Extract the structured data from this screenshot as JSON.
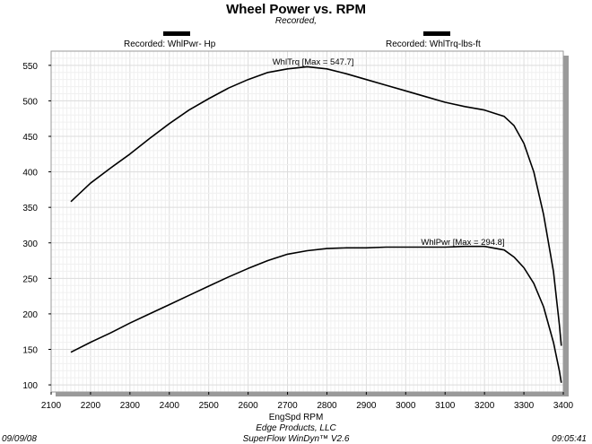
{
  "chart_data": {
    "type": "line",
    "title": "Wheel Power vs. RPM",
    "subtitle": "Recorded,",
    "xlabel": "EngSpd  RPM",
    "ylabel": "",
    "xlim": [
      2100,
      3400
    ],
    "ylim": [
      90,
      570
    ],
    "xticks": [
      "2100",
      "2200",
      "2300",
      "2400",
      "2500",
      "2600",
      "2700",
      "2800",
      "2900",
      "3000",
      "3100",
      "3200",
      "3300",
      "3400"
    ],
    "yticks": [
      "100",
      "150",
      "200",
      "250",
      "300",
      "350",
      "400",
      "450",
      "500",
      "550"
    ],
    "grid": true,
    "legend_position": "top",
    "legend": [
      {
        "label": "Recorded: WhlPwr-  Hp"
      },
      {
        "label": "Recorded: WhlTrq-lbs-ft"
      }
    ],
    "series": [
      {
        "name": "WhlTrq",
        "x": [
          2150,
          2200,
          2250,
          2300,
          2350,
          2400,
          2450,
          2500,
          2550,
          2600,
          2650,
          2700,
          2750,
          2800,
          2850,
          2900,
          2950,
          3000,
          3050,
          3100,
          3150,
          3200,
          3250,
          3275,
          3300,
          3325,
          3350,
          3375,
          3390,
          3395
        ],
        "values": [
          358,
          384,
          405,
          425,
          447,
          468,
          487,
          503,
          518,
          530,
          540,
          545,
          548,
          545,
          538,
          530,
          522,
          514,
          506,
          498,
          492,
          487,
          478,
          465,
          440,
          400,
          340,
          260,
          185,
          155
        ]
      },
      {
        "name": "WhlPwr",
        "x": [
          2150,
          2200,
          2250,
          2300,
          2350,
          2400,
          2450,
          2500,
          2550,
          2600,
          2650,
          2700,
          2750,
          2800,
          2850,
          2900,
          2950,
          3000,
          3050,
          3100,
          3150,
          3200,
          3250,
          3275,
          3300,
          3325,
          3350,
          3375,
          3390,
          3395
        ],
        "values": [
          146,
          160,
          173,
          187,
          200,
          213,
          226,
          239,
          252,
          264,
          275,
          284,
          289,
          292,
          293,
          293,
          294,
          294,
          294,
          294,
          295,
          295,
          290,
          280,
          265,
          243,
          210,
          160,
          120,
          103
        ]
      }
    ],
    "annotations": [
      {
        "text": "WhlTrq [Max = 547.7]",
        "x": 2765,
        "y": 551
      },
      {
        "text": "WhlPwr [Max = 294.8]",
        "x": 3145,
        "y": 297
      }
    ]
  },
  "footer": {
    "company": "Edge Products, LLC",
    "software": "SuperFlow WinDyn™ V2.6",
    "date": "09/09/08",
    "time": "09:05:41"
  }
}
